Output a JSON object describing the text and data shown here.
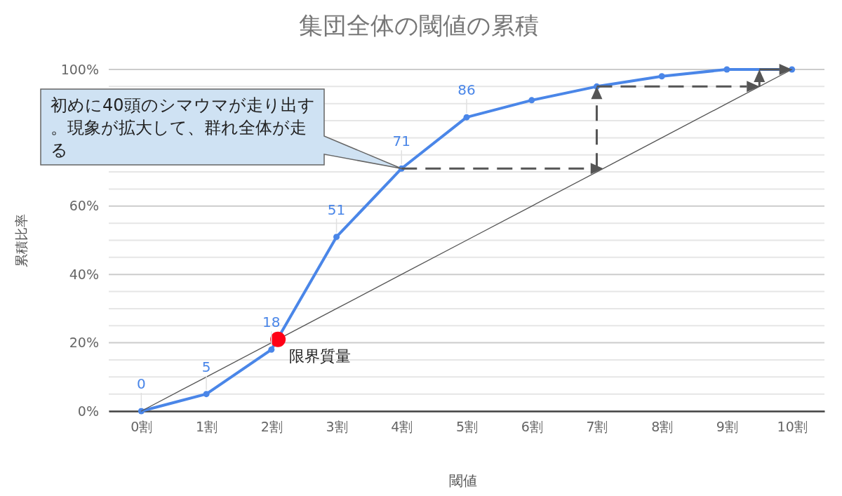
{
  "chart_data": {
    "type": "line",
    "title": "集団全体の閾値の累積",
    "xlabel": "閾値",
    "ylabel": "累積比率",
    "x": [
      0,
      1,
      2,
      3,
      4,
      5,
      6,
      7,
      8,
      9,
      10
    ],
    "xlim": [
      -0.5,
      10.5
    ],
    "xticks": [
      {
        "value": 0,
        "label": "0割"
      },
      {
        "value": 1,
        "label": "1割"
      },
      {
        "value": 2,
        "label": "2割"
      },
      {
        "value": 3,
        "label": "3割"
      },
      {
        "value": 4,
        "label": "4割"
      },
      {
        "value": 5,
        "label": "5割"
      },
      {
        "value": 6,
        "label": "6割"
      },
      {
        "value": 7,
        "label": "7割"
      },
      {
        "value": 8,
        "label": "8割"
      },
      {
        "value": 9,
        "label": "9割"
      },
      {
        "value": 10,
        "label": "10割"
      }
    ],
    "ylim": [
      0,
      100
    ],
    "yticks": [
      {
        "value": 0,
        "label": "0%"
      },
      {
        "value": 5,
        "label": null
      },
      {
        "value": 10,
        "label": null
      },
      {
        "value": 15,
        "label": null
      },
      {
        "value": 20,
        "label": "20%"
      },
      {
        "value": 25,
        "label": null
      },
      {
        "value": 30,
        "label": null
      },
      {
        "value": 35,
        "label": null
      },
      {
        "value": 40,
        "label": "40%"
      },
      {
        "value": 45,
        "label": null
      },
      {
        "value": 50,
        "label": null
      },
      {
        "value": 55,
        "label": null
      },
      {
        "value": 60,
        "label": "60%"
      },
      {
        "value": 65,
        "label": null
      },
      {
        "value": 70,
        "label": null
      },
      {
        "value": 75,
        "label": null
      },
      {
        "value": 80,
        "label": null
      },
      {
        "value": 85,
        "label": null
      },
      {
        "value": 90,
        "label": null
      },
      {
        "value": 95,
        "label": null
      },
      {
        "value": 100,
        "label": "100%"
      }
    ],
    "grid": "y",
    "series": [
      {
        "color": "#4a86e8",
        "marker": "circle",
        "values": [
          0,
          5,
          18,
          51,
          71,
          86,
          91,
          95,
          98,
          100,
          100
        ],
        "value_labels": [
          "0",
          "5",
          "18",
          "51",
          "71",
          "86",
          null,
          null,
          null,
          null,
          null
        ]
      },
      {
        "color": "#555555",
        "marker": "none",
        "values": [
          0,
          10,
          20,
          30,
          40,
          50,
          60,
          70,
          80,
          90,
          100
        ]
      },
      {
        "type": "scatter",
        "color": "#ff0016",
        "marker": "circle",
        "x": [
          2.1
        ],
        "values": [
          21
        ]
      }
    ],
    "annotations": [
      {
        "text": "限界質量",
        "x": 2.1,
        "y": 21
      },
      "初めに40頭のシマウマが走り出す。現象が拡大して、群れ全体が走る"
    ]
  }
}
